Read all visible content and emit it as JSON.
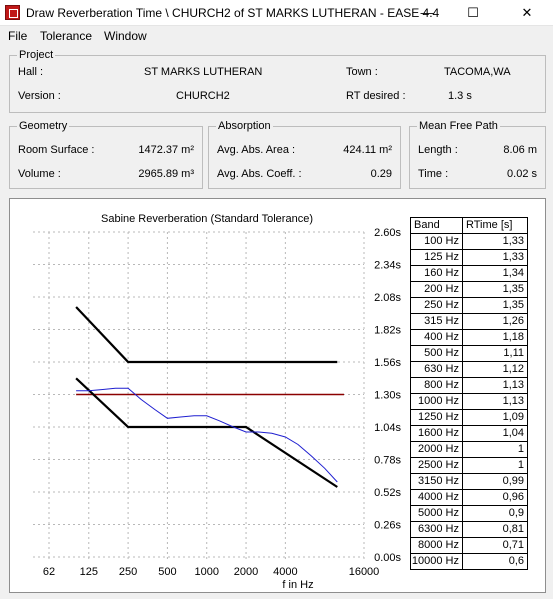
{
  "window": {
    "title": "Draw Reverberation Time \\ CHURCH2 of ST MARKS LUTHERAN - EASE 4.4",
    "icon": "ease-app-icon",
    "controls": {
      "minimize": "—",
      "maximize": "☐",
      "close": "✕"
    }
  },
  "menu": [
    "File",
    "Tolerance",
    "Window"
  ],
  "project": {
    "group_title": "Project",
    "hall_label": "Hall :",
    "hall_value": "ST MARKS LUTHERAN",
    "town_label": "Town :",
    "town_value": "TACOMA,WA",
    "version_label": "Version :",
    "version_value": "CHURCH2",
    "rt_desired_label": "RT desired :",
    "rt_desired_value": "1.3 s"
  },
  "geometry": {
    "group_title": "Geometry",
    "surface_label": "Room Surface :",
    "surface_value": "1472.37 m²",
    "volume_label": "Volume :",
    "volume_value": "2965.89 m³"
  },
  "absorption": {
    "group_title": "Absorption",
    "area_label": "Avg. Abs. Area :",
    "area_value": "424.11 m²",
    "coeff_label": "Avg. Abs. Coeff. :",
    "coeff_value": "0.29"
  },
  "mean_free_path": {
    "group_title": "Mean Free Path",
    "length_label": "Length :",
    "length_value": "8.06 m",
    "time_label": "Time :",
    "time_value": "0.02 s"
  },
  "chart_data": {
    "type": "line",
    "title": "Sabine Reverberation (Standard Tolerance)",
    "xlabel": "f in Hz",
    "ylabel": "",
    "x_scale": "log",
    "x_ticks": [
      "62",
      "125",
      "250",
      "500",
      "1000",
      "2000",
      "4000",
      "16000"
    ],
    "y_ticks": [
      "2.60s",
      "2.34s",
      "2.08s",
      "1.82s",
      "1.56s",
      "1.30s",
      "1.04s",
      "0.78s",
      "0.52s",
      "0.26s",
      "0.00s"
    ],
    "ylim": [
      0,
      2.6
    ],
    "grid": true,
    "x": [
      100,
      125,
      160,
      200,
      250,
      315,
      400,
      500,
      630,
      800,
      1000,
      1250,
      1600,
      2000,
      2500,
      3150,
      4000,
      5000,
      6300,
      8000,
      10000
    ],
    "series": [
      {
        "values": [
          1.33,
          1.33,
          1.34,
          1.35,
          1.35,
          1.26,
          1.18,
          1.11,
          1.12,
          1.13,
          1.13,
          1.09,
          1.04,
          1.0,
          1.0,
          0.99,
          0.96,
          0.9,
          0.81,
          0.71,
          0.6
        ],
        "color": "#1f1fd0"
      }
    ],
    "rt_desired": {
      "value": 1.3,
      "color": "#8b0000"
    },
    "tolerance_upper": {
      "x": [
        100,
        250,
        10000
      ],
      "values": [
        2.0,
        1.56,
        1.56
      ],
      "color": "#000000"
    },
    "tolerance_lower": {
      "x": [
        100,
        250,
        2000,
        10000
      ],
      "values": [
        1.43,
        1.04,
        1.04,
        0.56
      ],
      "color": "#000000"
    }
  },
  "table": {
    "headers": [
      "Band",
      "RTime [s]"
    ],
    "rows": [
      [
        "100 Hz",
        "1,33"
      ],
      [
        "125 Hz",
        "1,33"
      ],
      [
        "160 Hz",
        "1,34"
      ],
      [
        "200 Hz",
        "1,35"
      ],
      [
        "250 Hz",
        "1,35"
      ],
      [
        "315 Hz",
        "1,26"
      ],
      [
        "400 Hz",
        "1,18"
      ],
      [
        "500 Hz",
        "1,11"
      ],
      [
        "630 Hz",
        "1,12"
      ],
      [
        "800 Hz",
        "1,13"
      ],
      [
        "1000 Hz",
        "1,13"
      ],
      [
        "1250 Hz",
        "1,09"
      ],
      [
        "1600 Hz",
        "1,04"
      ],
      [
        "2000 Hz",
        "1"
      ],
      [
        "2500 Hz",
        "1"
      ],
      [
        "3150 Hz",
        "0,99"
      ],
      [
        "4000 Hz",
        "0,96"
      ],
      [
        "5000 Hz",
        "0,9"
      ],
      [
        "6300 Hz",
        "0,81"
      ],
      [
        "8000 Hz",
        "0,71"
      ],
      [
        "10000 Hz",
        "0,6"
      ]
    ]
  }
}
